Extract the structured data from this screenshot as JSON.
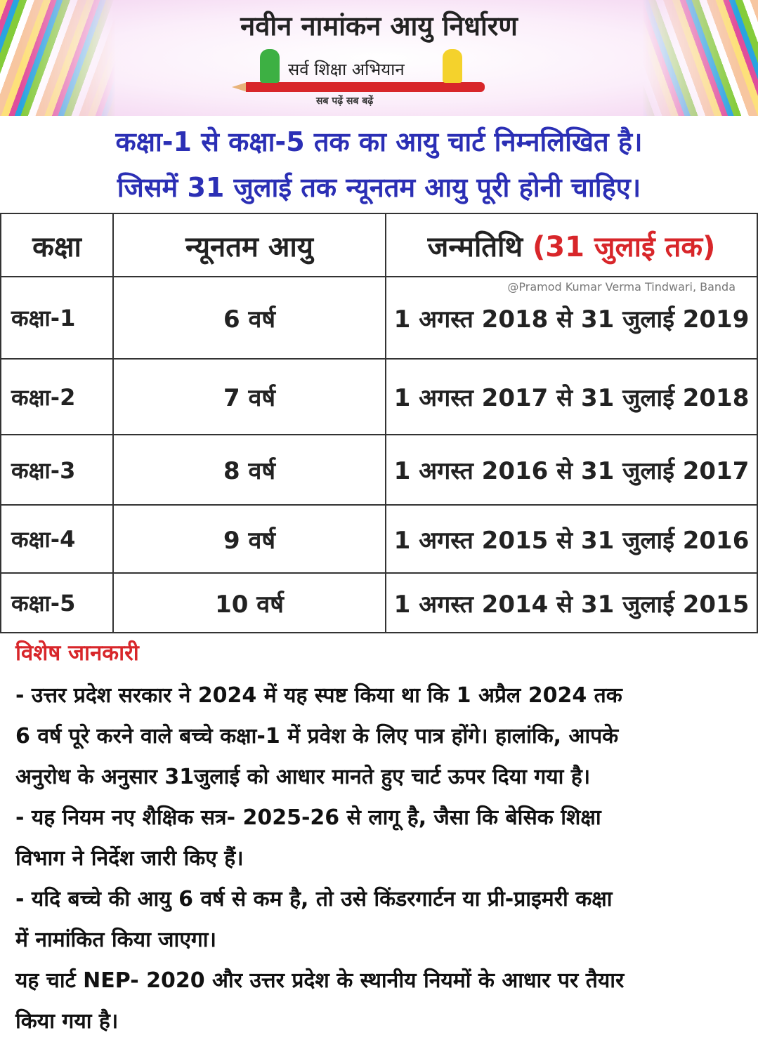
{
  "header": {
    "title": "नवीन नामांकन आयु निर्धारण",
    "logo_text": "सर्व शिक्षा अभियान",
    "logo_tagline": "सब पढ़ें सब बढ़ें"
  },
  "subtitle": [
    "कक्षा-1 से कक्षा-5 तक का आयु चार्ट निम्नलिखित है।",
    "जिसमें 31 जुलाई तक न्यूनतम आयु पूरी होनी चाहिए।"
  ],
  "table": {
    "headers": {
      "class": "कक्षा",
      "min_age": "न्यूनतम आयु",
      "dob": "जन्मतिथि",
      "dob_note": "(31 जुलाई तक)"
    },
    "watermark": "@Pramod Kumar Verma Tindwari, Banda",
    "rows": [
      {
        "class": "कक्षा-1",
        "age": "6 वर्ष",
        "dob": "1 अगस्त 2018 से 31 जुलाई 2019"
      },
      {
        "class": "कक्षा-2",
        "age": "7 वर्ष",
        "dob": "1 अगस्त 2017 से 31 जुलाई 2018"
      },
      {
        "class": "कक्षा-3",
        "age": "8 वर्ष",
        "dob": "1 अगस्त 2016 से 31 जुलाई 2017"
      },
      {
        "class": "कक्षा-4",
        "age": "9 वर्ष",
        "dob": "1 अगस्त 2015 से 31 जुलाई 2016"
      },
      {
        "class": "कक्षा-5",
        "age": "10 वर्ष",
        "dob": "1 अगस्त 2014 से 31 जुलाई 2015"
      }
    ]
  },
  "notes": {
    "heading": "विशेष जानकारी",
    "lines": [
      "- उत्तर प्रदेश सरकार ने 2024 में यह स्पष्ट किया था कि 1 अप्रैल 2024 तक",
      "6 वर्ष पूरे करने वाले बच्चे कक्षा-1 में प्रवेश के लिए पात्र होंगे। हालांकि, आपके",
      "अनुरोध के अनुसार 31जुलाई को आधार मानते हुए चार्ट ऊपर दिया गया है।",
      "- यह नियम नए शैक्षिक सत्र- 2025-26 से लागू है, जैसा कि बेसिक शिक्षा",
      "विभाग ने निर्देश जारी किए हैं।",
      "- यदि बच्चे की आयु 6 वर्ष से कम है, तो उसे किंडरगार्टन या प्री-प्राइमरी कक्षा",
      "में नामांकित किया जाएगा।",
      "यह चार्ट NEP- 2020 और उत्तर प्रदेश के स्थानीय नियमों के आधार पर तैयार",
      "किया गया है।"
    ]
  }
}
